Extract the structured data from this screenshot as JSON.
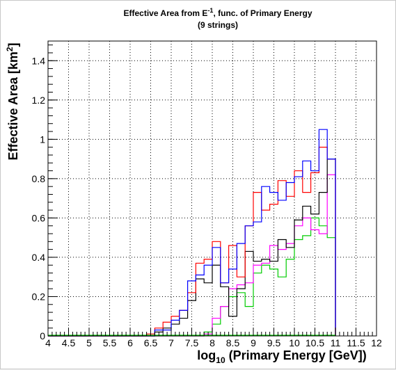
{
  "chart_data": {
    "type": "line",
    "title": "Effective Area from E^-1, func. of Primary Energy",
    "title_parts": {
      "before": "Effective Area from E",
      "sup": "-1",
      "after": ", func. of Primary Energy"
    },
    "subtitle": "(9 strings)",
    "xlabel": "log10 (Primary Energy [GeV])",
    "xlabel_parts": {
      "before": "log",
      "sub": "10",
      "after": " (Primary Energy [GeV])"
    },
    "ylabel": "Effective Area [km^2]",
    "ylabel_parts": {
      "before": "Effective Area [km",
      "sup": "2",
      "after": "]"
    },
    "xlim": [
      4,
      12
    ],
    "ylim": [
      0,
      1.5
    ],
    "grid": true,
    "step_style": "histogram",
    "bin_width": 0.2,
    "x_ticks": [
      "4",
      "4.5",
      "5",
      "5.5",
      "6",
      "6.5",
      "7",
      "7.5",
      "8",
      "8.5",
      "9",
      "9.5",
      "10",
      "10.5",
      "11",
      "11.5",
      "12"
    ],
    "y_ticks": [
      "0",
      "0.2",
      "0.4",
      "0.6",
      "0.8",
      "1",
      "1.2",
      "1.4"
    ],
    "bin_edges": [
      4.0,
      4.2,
      4.4,
      4.6,
      4.8,
      5.0,
      5.2,
      5.4,
      5.6,
      5.8,
      6.0,
      6.2,
      6.4,
      6.6,
      6.8,
      7.0,
      7.2,
      7.4,
      7.6,
      7.8,
      8.0,
      8.2,
      8.4,
      8.6,
      8.8,
      9.0,
      9.2,
      9.4,
      9.6,
      9.8,
      10.0,
      10.2,
      10.4,
      10.6,
      10.8,
      11.0
    ],
    "series": [
      {
        "color": "#ff0000",
        "values": [
          0,
          0,
          0,
          0,
          0,
          0,
          0,
          0,
          0,
          0,
          0,
          0,
          0.01,
          0.04,
          0.07,
          0.1,
          0.13,
          0.22,
          0.37,
          0.39,
          0.48,
          0.27,
          0.46,
          0.3,
          0.56,
          0.73,
          0.64,
          0.67,
          0.79,
          0.71,
          0.84,
          0.73,
          0.83,
          0.96,
          0.9
        ]
      },
      {
        "color": "#0000ff",
        "values": [
          0,
          0,
          0,
          0,
          0,
          0,
          0,
          0,
          0,
          0,
          0,
          0,
          0,
          0.03,
          0.03,
          0.08,
          0.13,
          0.28,
          0.31,
          0.36,
          0.45,
          0.27,
          0.34,
          0.47,
          0.56,
          0.58,
          0.76,
          0.73,
          0.69,
          0.78,
          0.81,
          0.89,
          0.84,
          1.05,
          0.9
        ]
      },
      {
        "color": "#000000",
        "values": [
          0,
          0,
          0,
          0,
          0,
          0,
          0,
          0,
          0,
          0,
          0,
          0,
          0,
          0.02,
          0.04,
          0.06,
          0.09,
          0.18,
          0.29,
          0.27,
          0.36,
          0.25,
          0.1,
          0.24,
          0.43,
          0.38,
          0.39,
          0.38,
          0.49,
          0.45,
          0.59,
          0.66,
          0.62,
          0.73,
          0.9
        ]
      },
      {
        "color": "#ff00ff",
        "values": [
          0,
          0,
          0,
          0,
          0,
          0,
          0,
          0,
          0,
          0,
          0,
          0,
          0,
          0,
          0,
          0,
          0,
          0,
          0,
          0.01,
          0.09,
          0.15,
          0.24,
          0.26,
          0.27,
          0.36,
          0.37,
          0.46,
          0.44,
          0.47,
          0.56,
          0.6,
          0.54,
          0.52,
          0.82
        ]
      },
      {
        "color": "#00cc00",
        "values": [
          0,
          0,
          0,
          0,
          0,
          0,
          0,
          0,
          0,
          0,
          0,
          0,
          0,
          0,
          0,
          0,
          0,
          0,
          0,
          0.02,
          0.06,
          0.15,
          0.2,
          0.22,
          0.15,
          0.32,
          0.36,
          0.34,
          0.3,
          0.39,
          0.49,
          0.51,
          0.6,
          0.56,
          0.5
        ]
      }
    ]
  }
}
